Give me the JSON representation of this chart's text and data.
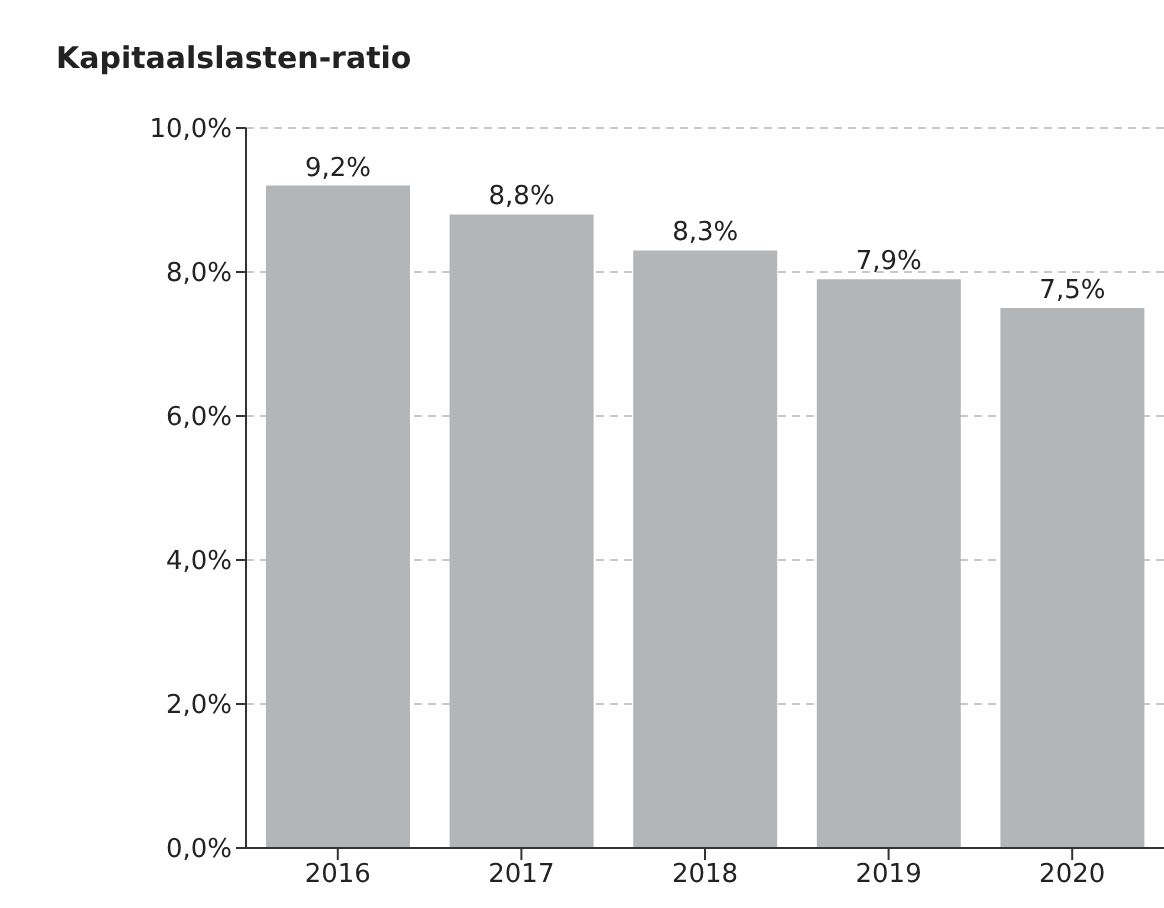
{
  "chart_data": {
    "type": "bar",
    "title": "Kapitaalslasten-ratio",
    "categories": [
      "2016",
      "2017",
      "2018",
      "2019",
      "2020"
    ],
    "values": [
      9.2,
      8.8,
      8.3,
      7.9,
      7.5
    ],
    "value_labels": [
      "9,2%",
      "8,8%",
      "8,3%",
      "7,9%",
      "7,5%"
    ],
    "color": "#b2b6b8",
    "ylim": [
      0,
      10
    ],
    "yticks": [
      {
        "value": 0,
        "label": "0,0%"
      },
      {
        "value": 2,
        "label": "2,0%"
      },
      {
        "value": 4,
        "label": "4,0%"
      },
      {
        "value": 6,
        "label": "6,0%"
      },
      {
        "value": 8,
        "label": "8,0%"
      },
      {
        "value": 10,
        "label": "10,0%"
      }
    ],
    "grid": "y"
  }
}
